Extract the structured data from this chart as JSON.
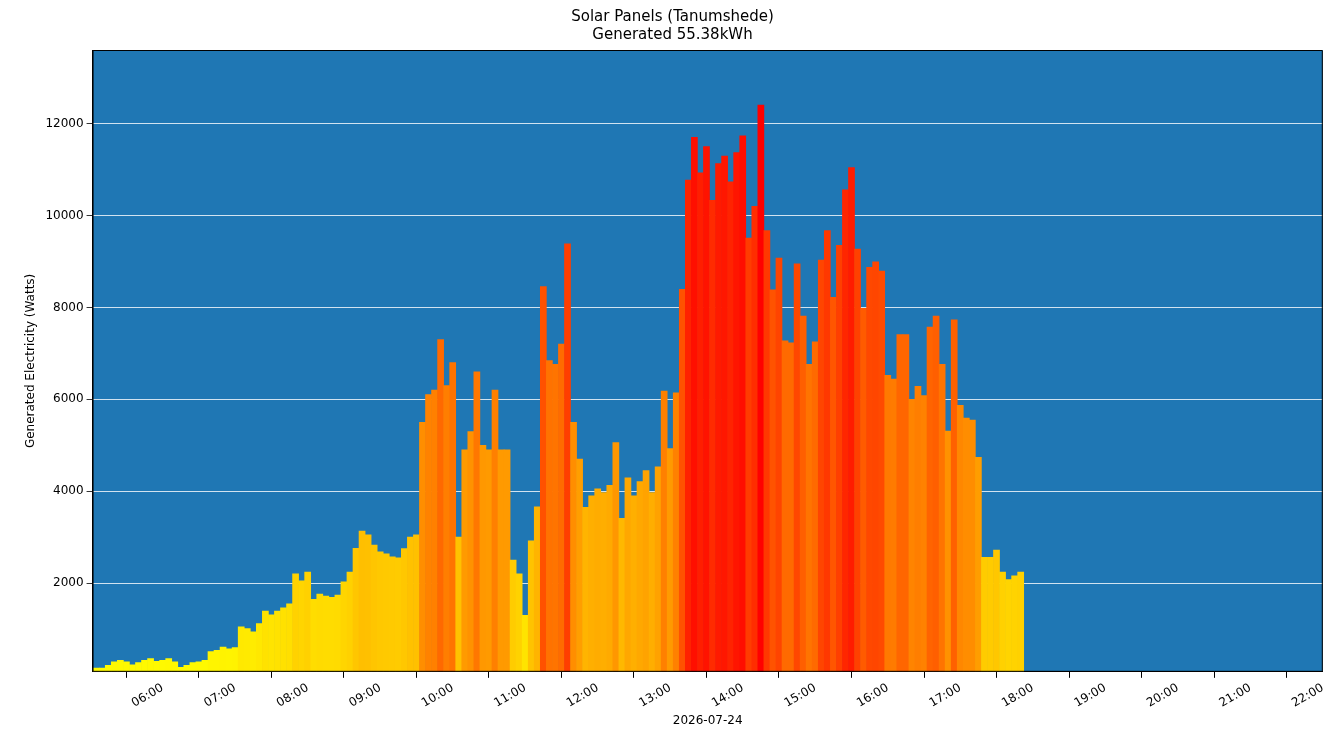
{
  "chart_data": {
    "type": "bar",
    "title": "Solar Panels (Tanumshede)",
    "subtitle": "Generated 55.38kWh",
    "xlabel": "2026-07-24",
    "ylabel": "Generated Electricity (Watts)",
    "x": [
      "2026-07-24T05:05",
      "2026-07-24T05:10",
      "2026-07-24T05:15",
      "2026-07-24T05:20",
      "2026-07-24T05:25",
      "2026-07-24T05:30",
      "2026-07-24T05:35",
      "2026-07-24T05:40",
      "2026-07-24T05:45",
      "2026-07-24T05:50",
      "2026-07-24T05:55",
      "2026-07-24T06:00",
      "2026-07-24T06:05",
      "2026-07-24T06:10",
      "2026-07-24T06:15",
      "2026-07-24T06:20",
      "2026-07-24T06:25",
      "2026-07-24T06:30",
      "2026-07-24T06:35",
      "2026-07-24T06:40",
      "2026-07-24T06:45",
      "2026-07-24T06:50",
      "2026-07-24T06:55",
      "2026-07-24T07:00",
      "2026-07-24T07:05",
      "2026-07-24T07:10",
      "2026-07-24T07:15",
      "2026-07-24T07:20",
      "2026-07-24T07:25",
      "2026-07-24T07:30",
      "2026-07-24T07:35",
      "2026-07-24T07:40",
      "2026-07-24T07:45",
      "2026-07-24T07:50",
      "2026-07-24T07:55",
      "2026-07-24T08:00",
      "2026-07-24T08:05",
      "2026-07-24T08:10",
      "2026-07-24T08:15",
      "2026-07-24T08:20",
      "2026-07-24T08:25",
      "2026-07-24T08:30",
      "2026-07-24T08:35",
      "2026-07-24T08:40",
      "2026-07-24T08:45",
      "2026-07-24T08:50",
      "2026-07-24T08:55",
      "2026-07-24T09:00",
      "2026-07-24T09:05",
      "2026-07-24T09:10",
      "2026-07-24T09:15",
      "2026-07-24T09:20",
      "2026-07-24T09:25",
      "2026-07-24T09:30",
      "2026-07-24T09:35",
      "2026-07-24T09:40",
      "2026-07-24T09:45",
      "2026-07-24T09:50",
      "2026-07-24T09:55",
      "2026-07-24T10:00",
      "2026-07-24T10:05",
      "2026-07-24T10:10",
      "2026-07-24T10:15",
      "2026-07-24T10:20",
      "2026-07-24T10:25",
      "2026-07-24T10:30",
      "2026-07-24T10:35",
      "2026-07-24T10:40",
      "2026-07-24T10:45",
      "2026-07-24T10:50",
      "2026-07-24T10:55",
      "2026-07-24T11:00",
      "2026-07-24T11:05",
      "2026-07-24T11:10",
      "2026-07-24T11:15",
      "2026-07-24T11:20",
      "2026-07-24T11:25",
      "2026-07-24T11:30",
      "2026-07-24T11:35",
      "2026-07-24T11:40",
      "2026-07-24T11:45",
      "2026-07-24T11:50",
      "2026-07-24T11:55",
      "2026-07-24T12:00",
      "2026-07-24T12:05",
      "2026-07-24T12:10",
      "2026-07-24T12:15",
      "2026-07-24T12:20",
      "2026-07-24T12:25",
      "2026-07-24T12:30",
      "2026-07-24T12:35",
      "2026-07-24T12:40",
      "2026-07-24T12:45",
      "2026-07-24T12:50",
      "2026-07-24T12:55",
      "2026-07-24T13:00",
      "2026-07-24T13:05",
      "2026-07-24T13:10",
      "2026-07-24T13:15",
      "2026-07-24T13:20",
      "2026-07-24T13:25",
      "2026-07-24T13:30",
      "2026-07-24T13:35",
      "2026-07-24T13:40",
      "2026-07-24T13:45",
      "2026-07-24T13:50",
      "2026-07-24T13:55",
      "2026-07-24T14:00",
      "2026-07-24T14:05",
      "2026-07-24T14:10",
      "2026-07-24T14:15",
      "2026-07-24T14:20",
      "2026-07-24T14:25",
      "2026-07-24T14:30",
      "2026-07-24T14:35",
      "2026-07-24T14:40",
      "2026-07-24T14:45",
      "2026-07-24T14:50",
      "2026-07-24T14:55",
      "2026-07-24T15:00",
      "2026-07-24T15:05",
      "2026-07-24T15:10",
      "2026-07-24T15:15",
      "2026-07-24T15:20",
      "2026-07-24T15:25",
      "2026-07-24T15:30",
      "2026-07-24T15:35",
      "2026-07-24T15:40",
      "2026-07-24T15:45",
      "2026-07-24T15:50",
      "2026-07-24T15:55",
      "2026-07-24T16:00",
      "2026-07-24T16:05",
      "2026-07-24T16:10",
      "2026-07-24T16:15",
      "2026-07-24T16:20",
      "2026-07-24T16:25",
      "2026-07-24T16:30",
      "2026-07-24T16:35",
      "2026-07-24T16:40",
      "2026-07-24T16:45",
      "2026-07-24T16:50",
      "2026-07-24T16:55",
      "2026-07-24T17:00",
      "2026-07-24T17:05",
      "2026-07-24T17:10",
      "2026-07-24T17:15",
      "2026-07-24T17:20",
      "2026-07-24T17:25",
      "2026-07-24T17:30",
      "2026-07-24T17:35",
      "2026-07-24T17:40",
      "2026-07-24T17:45",
      "2026-07-24T17:50"
    ],
    "values": [
      150,
      150,
      210,
      290,
      320,
      290,
      220,
      270,
      320,
      360,
      300,
      320,
      360,
      290,
      170,
      210,
      270,
      290,
      320,
      510,
      540,
      610,
      570,
      600,
      1050,
      1010,
      940,
      1120,
      1390,
      1310,
      1390,
      1460,
      1550,
      2200,
      2050,
      2240,
      1650,
      1760,
      1720,
      1690,
      1740,
      2030,
      2240,
      2760,
      3130,
      3050,
      2830,
      2680,
      2640,
      2570,
      2550,
      2750,
      3000,
      3050,
      5500,
      6100,
      6200,
      7300,
      6300,
      6800,
      3000,
      4900,
      5300,
      6600,
      5000,
      4900,
      6200,
      4900,
      4900,
      2500,
      2200,
      1300,
      2920,
      3660,
      8450,
      6840,
      6760,
      7200,
      9380,
      5500,
      4700,
      3650,
      3900,
      4050,
      3970,
      4130,
      5060,
      3410,
      4290,
      3900,
      4210,
      4450,
      3970,
      4530,
      6180,
      4930,
      6140,
      8390,
      10770,
      11700,
      10930,
      11500,
      10330,
      11130,
      11290,
      10730,
      11370,
      11730,
      9510,
      10200,
      12400,
      9670,
      8380,
      9070,
      7270,
      7230,
      8950,
      7810,
      6760,
      7250,
      9030,
      9670,
      8220,
      9350,
      10560,
      11040,
      9270,
      7980,
      8870,
      8990,
      8790,
      6520,
      6440,
      7410,
      7410,
      6000,
      6280,
      6080,
      7570,
      7810,
      6760,
      5310,
      7730,
      5870,
      5590,
      5550,
      4740,
      2560,
      2560,
      2720,
      2240,
      2080,
      2160,
      2240
    ],
    "colors": [
      "#fffc00",
      "#fffc00",
      "#fffb00",
      "#fff900",
      "#fff900",
      "#fff900",
      "#fffb00",
      "#fffa00",
      "#fff900",
      "#fff800",
      "#fff900",
      "#fff900",
      "#fff800",
      "#fff900",
      "#fffb00",
      "#fffb00",
      "#fffa00",
      "#fff900",
      "#fff900",
      "#fff500",
      "#fff500",
      "#fff300",
      "#fff400",
      "#fff300",
      "#ffe900",
      "#ffea00",
      "#ffec00",
      "#ffe800",
      "#ffe200",
      "#ffe400",
      "#ffe200",
      "#ffe100",
      "#ffdf00",
      "#ffd200",
      "#ffd500",
      "#ffd100",
      "#ffdd00",
      "#ffdb00",
      "#ffdc00",
      "#ffdc00",
      "#ffdb00",
      "#ffd500",
      "#ffd100",
      "#ffc600",
      "#ffbf00",
      "#ffc000",
      "#ffc500",
      "#ffc800",
      "#ffc900",
      "#ffca00",
      "#ffcb00",
      "#ffc700",
      "#ffc100",
      "#ffc000",
      "#ff8e00",
      "#ff8200",
      "#ff8000",
      "#ff6900",
      "#ff7e00",
      "#ff7300",
      "#ffc100",
      "#ff9a00",
      "#ff9200",
      "#ff7700",
      "#ff9800",
      "#ff9a00",
      "#ff8000",
      "#ff9a00",
      "#ff9a00",
      "#ffcc00",
      "#ffd200",
      "#ffe400",
      "#ffc300",
      "#ffb400",
      "#ff5100",
      "#ff7200",
      "#ff7400",
      "#ff6b00",
      "#ff3e00",
      "#ff8e00",
      "#ff9e00",
      "#ffb400",
      "#ffaf00",
      "#ffac00",
      "#ffae00",
      "#ffaa00",
      "#ff9700",
      "#ffb800",
      "#ffa700",
      "#ffaf00",
      "#ffa800",
      "#ffa300",
      "#ffae00",
      "#ffa200",
      "#ff8000",
      "#ff9a00",
      "#ff8100",
      "#ff5200",
      "#ff2200",
      "#ff0f00",
      "#ff1e00",
      "#ff1300",
      "#ff2b00",
      "#ff1a00",
      "#ff1700",
      "#ff2300",
      "#ff1500",
      "#ff0e00",
      "#ff3c00",
      "#ff2d00",
      "#ff0000",
      "#ff3800",
      "#ff5300",
      "#ff4400",
      "#ff6a00",
      "#ff6a00",
      "#ff4700",
      "#ff5f00",
      "#ff7400",
      "#ff6a00",
      "#ff4500",
      "#ff3800",
      "#ff5600",
      "#ff3f00",
      "#ff2600",
      "#ff1c00",
      "#ff4100",
      "#ff5b00",
      "#ff4800",
      "#ff4600",
      "#ff4a00",
      "#ff7900",
      "#ff7b00",
      "#ff6600",
      "#ff6600",
      "#ff8400",
      "#ff7e00",
      "#ff8200",
      "#ff6400",
      "#ff5f00",
      "#ff7400",
      "#ff9200",
      "#ff6100",
      "#ff8700",
      "#ff8d00",
      "#ff8d00",
      "#ff9d00",
      "#ffcb00",
      "#ffcb00",
      "#ffc700",
      "#ffd100",
      "#ffd400",
      "#ffd300",
      "#ffd100"
    ],
    "xlim": [
      "2026-07-24T05:02",
      "2026-07-24T22:00"
    ],
    "xticks": [
      {
        "value": "2026-07-24T06:00",
        "label": "06:00"
      },
      {
        "value": "2026-07-24T07:00",
        "label": "07:00"
      },
      {
        "value": "2026-07-24T08:00",
        "label": "08:00"
      },
      {
        "value": "2026-07-24T09:00",
        "label": "09:00"
      },
      {
        "value": "2026-07-24T10:00",
        "label": "10:00"
      },
      {
        "value": "2026-07-24T11:00",
        "label": "11:00"
      },
      {
        "value": "2026-07-24T12:00",
        "label": "12:00"
      },
      {
        "value": "2026-07-24T13:00",
        "label": "13:00"
      },
      {
        "value": "2026-07-24T14:00",
        "label": "14:00"
      },
      {
        "value": "2026-07-24T15:00",
        "label": "15:00"
      },
      {
        "value": "2026-07-24T16:00",
        "label": "16:00"
      },
      {
        "value": "2026-07-24T17:00",
        "label": "17:00"
      },
      {
        "value": "2026-07-24T18:00",
        "label": "18:00"
      },
      {
        "value": "2026-07-24T19:00",
        "label": "19:00"
      },
      {
        "value": "2026-07-24T20:00",
        "label": "20:00"
      },
      {
        "value": "2026-07-24T21:00",
        "label": "21:00"
      },
      {
        "value": "2026-07-24T22:00",
        "label": "22:00"
      }
    ],
    "ylim": [
      70,
      13600
    ],
    "yticks": [
      2000,
      4000,
      6000,
      8000,
      10000,
      12000
    ],
    "grid": "y"
  }
}
